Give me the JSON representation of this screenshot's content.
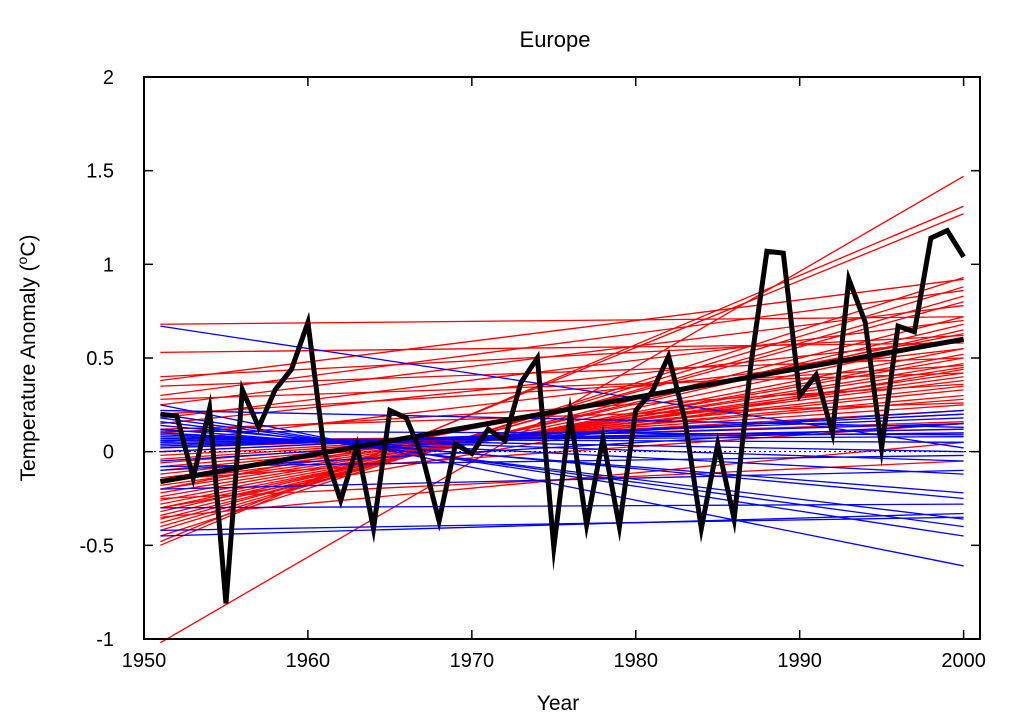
{
  "chart_data": {
    "type": "line",
    "title": "Europe",
    "xlabel": "Year",
    "ylabel_prefix": "Temperature Anomaly (",
    "ylabel_sup": "o",
    "ylabel_suffix": "C)",
    "xlim": [
      1950,
      2001
    ],
    "ylim": [
      -1,
      2
    ],
    "xticks": [
      1950,
      1960,
      1970,
      1980,
      1990,
      2000
    ],
    "yticks": [
      -1,
      -0.5,
      0,
      0.5,
      1,
      1.5,
      2
    ],
    "ytick_labels": [
      "-1",
      "-0.5",
      "0",
      "0.5",
      "1",
      "1.5",
      "2"
    ],
    "zero_line": {
      "y": 0,
      "style": "dotted"
    },
    "colors": {
      "warming": "#ff0000",
      "cooling": "#0000ff",
      "observed": "#000000"
    },
    "observed_series": {
      "x": [
        1951,
        1952,
        1953,
        1954,
        1955,
        1956,
        1957,
        1958,
        1959,
        1960,
        1961,
        1962,
        1963,
        1964,
        1965,
        1966,
        1967,
        1968,
        1969,
        1970,
        1971,
        1972,
        1973,
        1974,
        1975,
        1976,
        1977,
        1978,
        1979,
        1980,
        1981,
        1982,
        1983,
        1984,
        1985,
        1986,
        1987,
        1988,
        1989,
        1990,
        1991,
        1992,
        1993,
        1994,
        1995,
        1996,
        1997,
        1998,
        1999,
        2000
      ],
      "y": [
        0.2,
        0.19,
        -0.14,
        0.23,
        -0.81,
        0.33,
        0.13,
        0.33,
        0.44,
        0.69,
        0.0,
        -0.26,
        0.03,
        -0.41,
        0.22,
        0.18,
        -0.03,
        -0.37,
        0.04,
        -0.01,
        0.12,
        0.06,
        0.37,
        0.5,
        -0.51,
        0.2,
        -0.39,
        0.07,
        -0.4,
        0.22,
        0.32,
        0.51,
        0.17,
        -0.41,
        0.04,
        -0.36,
        0.45,
        1.07,
        1.06,
        0.3,
        0.41,
        0.1,
        0.92,
        0.69,
        0.02,
        0.67,
        0.64,
        1.14,
        1.18,
        1.04
      ]
    },
    "observed_trend": {
      "x": [
        1951,
        2000
      ],
      "y": [
        -0.16,
        0.6
      ]
    },
    "warming_trends": [
      {
        "y": [
          -1.02,
          1.47
        ]
      },
      {
        "y": [
          -0.5,
          1.31
        ]
      },
      {
        "y": [
          -0.48,
          1.27
        ]
      },
      {
        "y": [
          -0.45,
          0.93
        ]
      },
      {
        "y": [
          -0.42,
          0.88
        ]
      },
      {
        "y": [
          -0.4,
          0.83
        ]
      },
      {
        "y": [
          -0.38,
          0.8
        ]
      },
      {
        "y": [
          -0.36,
          0.72
        ]
      },
      {
        "y": [
          -0.34,
          0.68
        ]
      },
      {
        "y": [
          -0.32,
          0.65
        ]
      },
      {
        "y": [
          -0.3,
          0.6
        ]
      },
      {
        "y": [
          -0.28,
          0.55
        ]
      },
      {
        "y": [
          -0.26,
          0.52
        ]
      },
      {
        "y": [
          -0.24,
          0.5
        ]
      },
      {
        "y": [
          -0.22,
          0.47
        ]
      },
      {
        "y": [
          -0.2,
          0.45
        ]
      },
      {
        "y": [
          -0.18,
          0.42
        ]
      },
      {
        "y": [
          -0.16,
          0.4
        ]
      },
      {
        "y": [
          -0.14,
          0.38
        ]
      },
      {
        "y": [
          -0.12,
          0.35
        ]
      },
      {
        "y": [
          -0.1,
          0.33
        ]
      },
      {
        "y": [
          -0.08,
          0.3
        ]
      },
      {
        "y": [
          -0.06,
          0.28
        ]
      },
      {
        "y": [
          -0.04,
          0.25
        ]
      },
      {
        "y": [
          -0.02,
          0.22
        ]
      },
      {
        "y": [
          0.0,
          0.2
        ]
      },
      {
        "y": [
          0.02,
          0.16
        ]
      },
      {
        "y": [
          0.04,
          0.12
        ]
      },
      {
        "y": [
          0.06,
          0.1
        ]
      },
      {
        "y": [
          0.1,
          0.36
        ]
      },
      {
        "y": [
          0.15,
          0.6
        ]
      },
      {
        "y": [
          0.2,
          0.46
        ]
      },
      {
        "y": [
          0.25,
          0.78
        ]
      },
      {
        "y": [
          0.3,
          0.86
        ]
      },
      {
        "y": [
          0.35,
          0.5
        ]
      },
      {
        "y": [
          0.38,
          0.92
        ]
      },
      {
        "y": [
          0.4,
          0.62
        ]
      },
      {
        "y": [
          0.53,
          0.58
        ]
      },
      {
        "y": [
          0.68,
          0.72
        ]
      },
      {
        "y": [
          -0.35,
          0.05
        ]
      },
      {
        "y": [
          -0.25,
          -0.05
        ]
      },
      {
        "y": [
          -0.15,
          0.15
        ]
      },
      {
        "y": [
          0.12,
          0.26
        ]
      },
      {
        "y": [
          0.18,
          0.7
        ]
      },
      {
        "y": [
          -0.3,
          0.44
        ]
      },
      {
        "y": [
          -0.2,
          0.63
        ]
      },
      {
        "y": [
          0.05,
          0.55
        ]
      },
      {
        "y": [
          0.28,
          0.42
        ]
      }
    ],
    "cooling_trends": [
      {
        "y": [
          0.67,
          0.02
        ]
      },
      {
        "y": [
          0.25,
          -0.61
        ]
      },
      {
        "y": [
          0.2,
          -0.45
        ]
      },
      {
        "y": [
          0.18,
          -0.4
        ]
      },
      {
        "y": [
          0.16,
          -0.36
        ]
      },
      {
        "y": [
          0.14,
          -0.25
        ]
      },
      {
        "y": [
          0.12,
          -0.22
        ]
      },
      {
        "y": [
          0.1,
          -0.12
        ]
      },
      {
        "y": [
          0.09,
          -0.05
        ]
      },
      {
        "y": [
          0.08,
          0.0
        ]
      },
      {
        "y": [
          0.07,
          0.05
        ]
      },
      {
        "y": [
          0.06,
          0.08
        ]
      },
      {
        "y": [
          0.05,
          0.1
        ]
      },
      {
        "y": [
          0.04,
          0.12
        ]
      },
      {
        "y": [
          0.03,
          0.15
        ]
      },
      {
        "y": [
          0.02,
          0.18
        ]
      },
      {
        "y": [
          0.0,
          0.2
        ]
      },
      {
        "y": [
          -0.05,
          0.22
        ]
      },
      {
        "y": [
          -0.1,
          0.15
        ]
      },
      {
        "y": [
          -0.2,
          -0.1
        ]
      },
      {
        "y": [
          -0.3,
          -0.28
        ]
      },
      {
        "y": [
          -0.45,
          -0.33
        ]
      },
      {
        "y": [
          -0.42,
          -0.35
        ]
      },
      {
        "y": [
          0.22,
          0.13
        ]
      },
      {
        "y": [
          0.11,
          0.09
        ]
      },
      {
        "y": [
          -0.08,
          -0.02
        ]
      }
    ]
  }
}
